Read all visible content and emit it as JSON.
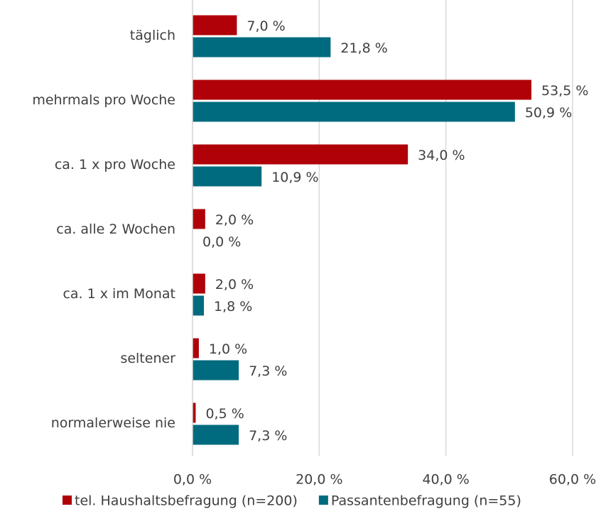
{
  "chart_data": {
    "type": "hbar",
    "categories": [
      "täglich",
      "mehrmals pro Woche",
      "ca. 1 x pro Woche",
      "ca. alle 2 Wochen",
      "ca. 1 x im Monat",
      "seltener",
      "normalerweise nie"
    ],
    "series": [
      {
        "name": "tel. Haushaltsbefragung (n=200)",
        "color": "#b00008",
        "values": [
          7.0,
          53.5,
          34.0,
          2.0,
          2.0,
          1.0,
          0.5
        ],
        "value_labels": [
          "7,0 %",
          "53,5 %",
          "34,0 %",
          "2,0 %",
          "2,0 %",
          "1,0 %",
          "0,5 %"
        ]
      },
      {
        "name": "Passantenbefragung (n=55)",
        "color": "#006b7e",
        "values": [
          21.8,
          50.9,
          10.9,
          0.0,
          1.8,
          7.3,
          7.3
        ],
        "value_labels": [
          "21,8 %",
          "50,9 %",
          "10,9 %",
          "0,0 %",
          "1,8 %",
          "7,3 %",
          "7,3 %"
        ]
      }
    ],
    "xlim": [
      0,
      60
    ],
    "xticks": [
      {
        "value": 0,
        "label": "0,0 %"
      },
      {
        "value": 20,
        "label": "20,0 %"
      },
      {
        "value": 40,
        "label": "40,0 %"
      },
      {
        "value": 60,
        "label": "60,0 %"
      }
    ],
    "grid": true,
    "legend": "bottom"
  }
}
